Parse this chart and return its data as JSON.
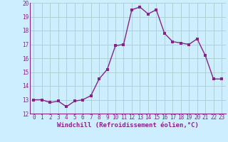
{
  "x": [
    0,
    1,
    2,
    3,
    4,
    5,
    6,
    7,
    8,
    9,
    10,
    11,
    12,
    13,
    14,
    15,
    16,
    17,
    18,
    19,
    20,
    21,
    22,
    23
  ],
  "y": [
    13.0,
    13.0,
    12.8,
    12.9,
    12.5,
    12.9,
    13.0,
    13.3,
    14.5,
    15.2,
    16.9,
    17.0,
    19.5,
    19.7,
    19.2,
    19.5,
    17.8,
    17.2,
    17.1,
    17.0,
    17.4,
    16.2,
    14.5,
    14.5
  ],
  "line_color": "#882288",
  "marker_color": "#882288",
  "bg_color": "#cceeff",
  "grid_color": "#aacccc",
  "xlabel": "Windchill (Refroidissement éolien,°C)",
  "xlim": [
    -0.5,
    23.5
  ],
  "ylim": [
    12,
    20
  ],
  "yticks": [
    12,
    13,
    14,
    15,
    16,
    17,
    18,
    19,
    20
  ],
  "xticks": [
    0,
    1,
    2,
    3,
    4,
    5,
    6,
    7,
    8,
    9,
    10,
    11,
    12,
    13,
    14,
    15,
    16,
    17,
    18,
    19,
    20,
    21,
    22,
    23
  ],
  "tick_fontsize": 5.5,
  "xlabel_fontsize": 6.5,
  "line_width": 1.0,
  "marker_size": 2.5
}
